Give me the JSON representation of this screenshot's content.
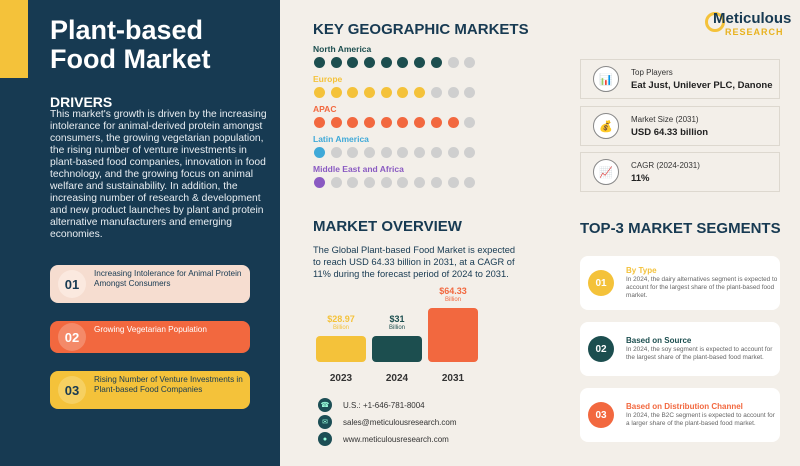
{
  "title": "Plant-based Food Market",
  "drivers": {
    "heading": "DRIVERS",
    "text": "This market's growth is driven by the increasing intolerance for animal-derived protein amongst consumers, the growing vegetarian population, the rising number of venture investments in plant-based food companies, innovation in food technology, and the growing focus on animal welfare and sustainability. In addition, the increasing number of research & development and new product launches by plant and protein alternative manufacturers and emerging economies.",
    "items": [
      {
        "num": "01",
        "text": "Increasing Intolerance for Animal Protein Amongst Consumers",
        "color": "#f6ddd0"
      },
      {
        "num": "02",
        "text": "Growing Vegetarian Population",
        "color": "#f2683f"
      },
      {
        "num": "03",
        "text": "Rising Number of Venture Investments in Plant-based Food Companies",
        "color": "#f4c23a"
      }
    ]
  },
  "geo": {
    "heading": "KEY GEOGRAPHIC MARKETS",
    "regions": [
      {
        "name": "North America",
        "filled": 8,
        "total": 10,
        "color": "#1c4e4f"
      },
      {
        "name": "Europe",
        "filled": 7,
        "total": 10,
        "color": "#f4c23a"
      },
      {
        "name": "APAC",
        "filled": 9,
        "total": 10,
        "color": "#f2683f"
      },
      {
        "name": "Latin America",
        "filled": 1,
        "total": 10,
        "color": "#3fa9d8"
      },
      {
        "name": "Middle East and Africa",
        "filled": 1,
        "total": 10,
        "color": "#8a5ac2"
      }
    ]
  },
  "logo": {
    "name": "Meticulous",
    "sub": "RESEARCH"
  },
  "info": [
    {
      "icon": "bar-chart-icon",
      "label": "Top Players",
      "value": "Eat Just, Unilever PLC, Danone"
    },
    {
      "icon": "money-bag-icon",
      "label": "Market Size (2031)",
      "value": "USD 64.33 billion"
    },
    {
      "icon": "growth-chart-icon",
      "label": "CAGR (2024-2031)",
      "value": "11%"
    }
  ],
  "overview": {
    "heading": "MARKET OVERVIEW",
    "text": "The Global Plant-based Food Market is expected to reach USD 64.33 billion in 2031, at a CAGR of 11% during the forecast period of 2024 to 2031."
  },
  "chart_data": {
    "type": "bar",
    "categories": [
      "2023",
      "2024",
      "2031"
    ],
    "values": [
      28.97,
      31,
      64.33
    ],
    "labels": [
      "$28.97",
      "$31",
      "$64.33"
    ],
    "unit": "Billion",
    "colors": [
      "#f4c23a",
      "#1c4e4f",
      "#f2683f"
    ]
  },
  "contacts": [
    {
      "icon": "phone-icon",
      "text": "U.S.: +1-646-781-8004"
    },
    {
      "icon": "email-icon",
      "text": "sales@meticulousresearch.com"
    },
    {
      "icon": "globe-icon",
      "text": "www.meticulousresearch.com"
    }
  ],
  "segments": {
    "heading": "TOP-3 MARKET SEGMENTS",
    "items": [
      {
        "num": "01",
        "title": "By Type",
        "text": "In 2024, the dairy alternatives segment is expected to account for the largest share of the plant-based food market.",
        "color": "#f4c23a"
      },
      {
        "num": "02",
        "title": "Based on Source",
        "text": "In 2024, the soy segment is expected to account for the largest share of the plant-based food market.",
        "color": "#1c4e4f"
      },
      {
        "num": "03",
        "title": "Based on Distribution Channel",
        "text": "In 2024, the B2C segment is expected to account for a larger share of the plant-based food market.",
        "color": "#f2683f"
      }
    ]
  }
}
